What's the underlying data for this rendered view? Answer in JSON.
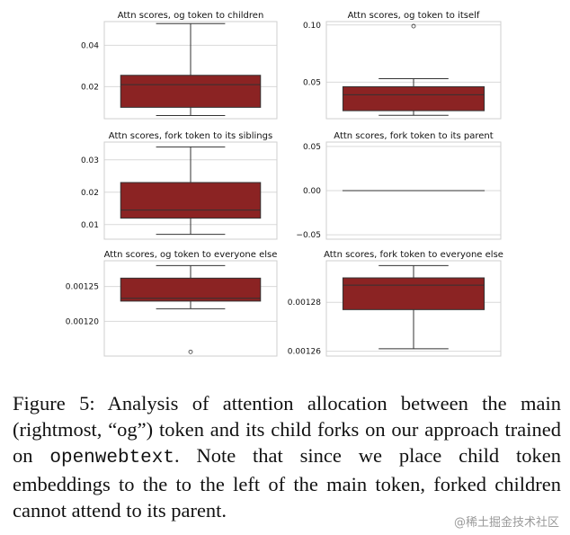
{
  "chart_data": [
    {
      "type": "box",
      "title": "Attn scores, og token to children",
      "yticks": [
        0.02,
        0.04
      ],
      "ytick_labels": [
        "0.02",
        "0.04"
      ],
      "ylim": [
        0.0045,
        0.0515
      ],
      "box": {
        "min": 0.006,
        "q1": 0.01,
        "median": 0.021,
        "q3": 0.0255,
        "max": 0.0505
      },
      "outliers": [],
      "color": "#8b2323"
    },
    {
      "type": "box",
      "title": "Attn scores, og token to itself",
      "yticks": [
        0.05,
        0.1
      ],
      "ytick_labels": [
        "0.05",
        "0.10"
      ],
      "ylim": [
        0.018,
        0.103
      ],
      "box": {
        "min": 0.021,
        "q1": 0.025,
        "median": 0.039,
        "q3": 0.046,
        "max": 0.053
      },
      "outliers": [
        0.099
      ],
      "color": "#8b2323"
    },
    {
      "type": "box",
      "title": "Attn scores, fork token to its siblings",
      "yticks": [
        0.01,
        0.02,
        0.03
      ],
      "ytick_labels": [
        "0.01",
        "0.02",
        "0.03"
      ],
      "ylim": [
        0.0055,
        0.0355
      ],
      "box": {
        "min": 0.007,
        "q1": 0.012,
        "median": 0.0145,
        "q3": 0.023,
        "max": 0.034
      },
      "outliers": [],
      "color": "#8b2323"
    },
    {
      "type": "box",
      "title": "Attn scores, fork token to its parent",
      "yticks": [
        -0.05,
        0.0,
        0.05
      ],
      "ytick_labels": [
        "−0.05",
        "0.00",
        "0.05"
      ],
      "ylim": [
        -0.055,
        0.055
      ],
      "box": {
        "min": 0.0,
        "q1": 0.0,
        "median": 0.0,
        "q3": 0.0,
        "max": 0.0
      },
      "outliers": [],
      "color": "#8b2323"
    },
    {
      "type": "box",
      "title": "Attn scores, og token to everyone else",
      "yticks": [
        0.0012,
        0.00125
      ],
      "ytick_labels": [
        "0.00120",
        "0.00125"
      ],
      "ylim": [
        0.00115,
        0.001287
      ],
      "box": {
        "min": 0.001218,
        "q1": 0.001229,
        "median": 0.001233,
        "q3": 0.001262,
        "max": 0.00128
      },
      "outliers": [
        0.001156
      ],
      "color": "#8b2323"
    },
    {
      "type": "box",
      "title": "Attn scores, fork token to everyone else",
      "yticks": [
        0.00126,
        0.00128
      ],
      "ytick_labels": [
        "0.00126",
        "0.00128"
      ],
      "ylim": [
        0.001258,
        0.001297
      ],
      "box": {
        "min": 0.001261,
        "q1": 0.001277,
        "median": 0.001287,
        "q3": 0.00129,
        "max": 0.001295
      },
      "outliers": [],
      "color": "#8b2323"
    }
  ],
  "caption": {
    "before_code": "Figure 5: Analysis of attention allocation between the main (rightmost, “og”) token and its child forks on our approach trained on ",
    "code": "openwebtext",
    "after_code": ". Note that since we place child token embeddings to the to the left of the main token, forked children cannot attend to its parent."
  },
  "watermark": "@稀土掘金技术社区"
}
